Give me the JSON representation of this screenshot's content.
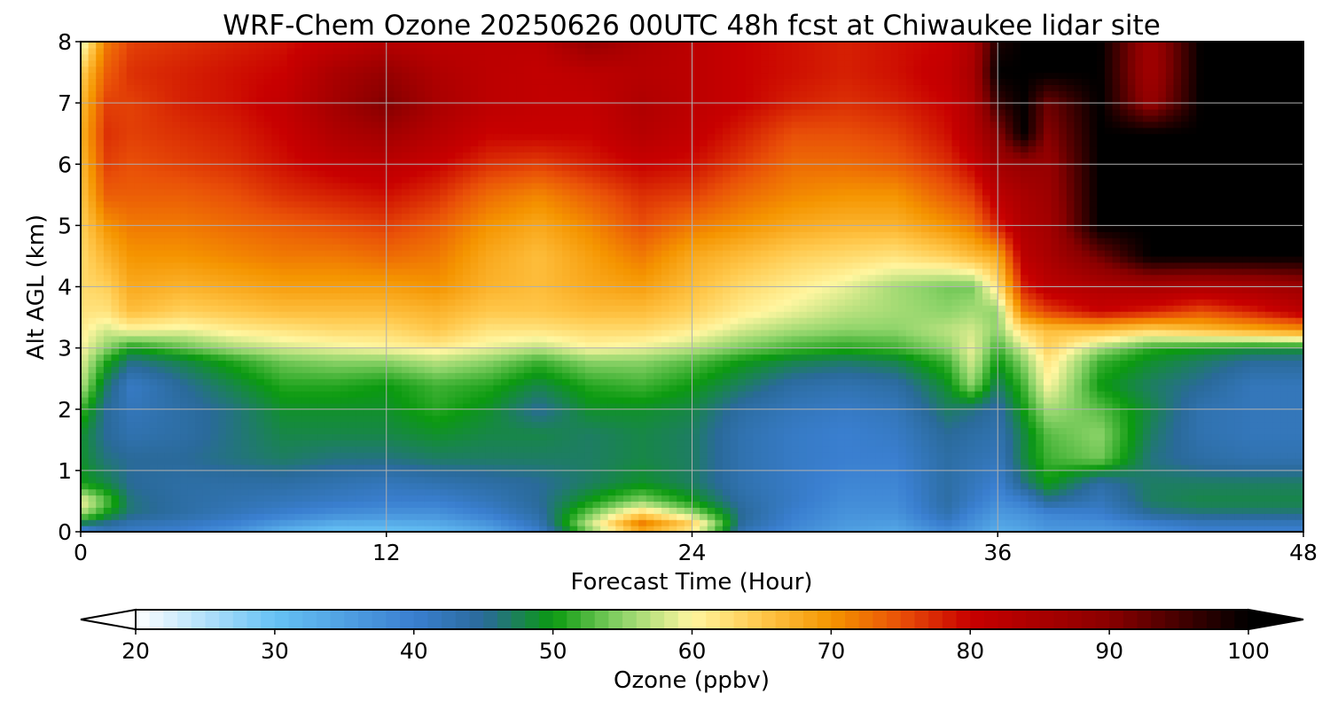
{
  "chart_data": {
    "type": "heatmap",
    "title": "WRF-Chem Ozone  20250626 00UTC 48h fcst at Chiwaukee lidar site",
    "xlabel": "Forecast Time (Hour)",
    "ylabel": "Alt AGL (km)",
    "xlim": [
      0,
      48
    ],
    "ylim": [
      0,
      8
    ],
    "xticks": [
      "0",
      "12",
      "24",
      "36",
      "48"
    ],
    "yticks": [
      "0",
      "1",
      "2",
      "3",
      "4",
      "5",
      "6",
      "7",
      "8"
    ],
    "grid": true,
    "colorbar": {
      "label": "Ozone  (ppbv)",
      "min": 20,
      "max": 100,
      "extend": "both",
      "ticks": [
        "20",
        "30",
        "40",
        "50",
        "60",
        "70",
        "80",
        "90",
        "100"
      ],
      "stops": [
        {
          "value": 20,
          "color": "#ffffff"
        },
        {
          "value": 30,
          "color": "#66c2f5"
        },
        {
          "value": 40,
          "color": "#3a7fd0"
        },
        {
          "value": 45,
          "color": "#2a6a9a"
        },
        {
          "value": 50,
          "color": "#0b9a10"
        },
        {
          "value": 55,
          "color": "#8ed46a"
        },
        {
          "value": 60,
          "color": "#fff6a0"
        },
        {
          "value": 65,
          "color": "#ffc74a"
        },
        {
          "value": 70,
          "color": "#f59500"
        },
        {
          "value": 75,
          "color": "#e95008"
        },
        {
          "value": 80,
          "color": "#c80000"
        },
        {
          "value": 90,
          "color": "#8a0000"
        },
        {
          "value": 100,
          "color": "#000000"
        }
      ]
    },
    "x": [
      0,
      1,
      2,
      4,
      6,
      8,
      10,
      12,
      14,
      16,
      18,
      20,
      22,
      24,
      26,
      28,
      30,
      32,
      34,
      35,
      36,
      37,
      38,
      40,
      42,
      44,
      46,
      48
    ],
    "y": [
      0,
      0.1,
      0.3,
      0.5,
      0.8,
      1.2,
      1.6,
      2.0,
      2.4,
      2.8,
      3.0,
      3.3,
      3.6,
      4.0,
      4.5,
      5.0,
      5.5,
      6.0,
      6.5,
      7.0,
      7.5,
      8.0
    ],
    "z": [
      [
        36,
        42,
        41,
        40,
        37,
        32,
        30,
        30,
        31,
        34,
        40,
        53,
        64,
        58,
        42,
        38,
        35,
        34,
        38,
        36,
        33,
        34,
        36,
        36,
        38,
        40,
        40,
        40
      ],
      [
        45,
        44,
        42,
        41,
        39,
        35,
        32,
        32,
        33,
        36,
        42,
        58,
        74,
        66,
        44,
        39,
        36,
        35,
        40,
        37,
        34,
        35,
        37,
        37,
        39,
        41,
        41,
        41
      ],
      [
        56,
        50,
        46,
        44,
        42,
        40,
        38,
        37,
        37,
        40,
        44,
        54,
        64,
        56,
        45,
        40,
        37,
        37,
        43,
        39,
        36,
        37,
        39,
        40,
        45,
        46,
        46,
        46
      ],
      [
        60,
        53,
        46,
        44,
        43,
        42,
        41,
        40,
        40,
        42,
        45,
        50,
        55,
        50,
        44,
        41,
        38,
        38,
        44,
        41,
        38,
        40,
        45,
        42,
        47,
        48,
        48,
        48
      ],
      [
        50,
        48,
        45,
        44,
        44,
        44,
        43,
        42,
        43,
        44,
        45,
        47,
        49,
        47,
        43,
        41,
        39,
        39,
        44,
        42,
        40,
        46,
        50,
        44,
        47,
        47,
        47,
        47
      ],
      [
        49,
        46,
        45,
        45,
        46,
        47,
        46,
        46,
        47,
        47,
        47,
        47,
        48,
        47,
        43,
        41,
        40,
        40,
        44,
        43,
        42,
        48,
        52,
        54,
        46,
        44,
        43,
        43
      ],
      [
        49,
        45,
        43,
        44,
        46,
        48,
        48,
        48,
        49,
        48,
        48,
        47,
        48,
        47,
        43,
        41,
        40,
        41,
        45,
        44,
        43,
        48,
        53,
        55,
        47,
        43,
        42,
        42
      ],
      [
        52,
        45,
        42,
        44,
        46,
        49,
        49,
        49,
        51,
        49,
        45,
        49,
        49,
        48,
        44,
        42,
        41,
        42,
        47,
        46,
        44,
        50,
        56,
        53,
        48,
        43,
        42,
        42
      ],
      [
        57,
        47,
        41,
        45,
        48,
        51,
        51,
        50,
        52,
        51,
        48,
        51,
        52,
        50,
        47,
        44,
        43,
        44,
        49,
        55,
        47,
        52,
        60,
        50,
        47,
        45,
        42,
        42
      ],
      [
        59,
        51,
        46,
        48,
        51,
        54,
        55,
        55,
        57,
        55,
        52,
        55,
        55,
        53,
        50,
        48,
        47,
        48,
        52,
        58,
        50,
        55,
        62,
        52,
        49,
        47,
        45,
        45
      ],
      [
        60,
        55,
        50,
        53,
        56,
        58,
        59,
        60,
        61,
        59,
        57,
        60,
        59,
        57,
        54,
        52,
        51,
        52,
        55,
        59,
        52,
        58,
        64,
        56,
        51,
        50,
        49,
        49
      ],
      [
        61,
        58,
        60,
        59,
        61,
        62,
        63,
        63,
        65,
        62,
        62,
        63,
        63,
        61,
        58,
        56,
        55,
        55,
        57,
        58,
        55,
        63,
        66,
        66,
        64,
        66,
        68,
        70
      ],
      [
        62,
        62,
        66,
        64,
        65,
        66,
        66,
        66,
        67,
        65,
        65,
        66,
        66,
        64,
        61,
        59,
        57,
        56,
        55,
        56,
        55,
        72,
        76,
        80,
        78,
        75,
        78,
        82
      ],
      [
        63,
        64,
        68,
        67,
        68,
        69,
        69,
        69,
        70,
        67,
        66,
        68,
        69,
        66,
        63,
        61,
        59,
        56,
        54,
        54,
        62,
        78,
        82,
        84,
        85,
        84,
        85,
        87
      ],
      [
        63,
        67,
        70,
        70,
        71,
        72,
        72,
        73,
        72,
        68,
        66,
        69,
        72,
        68,
        66,
        64,
        63,
        62,
        64,
        66,
        68,
        82,
        85,
        92,
        100,
        100,
        100,
        100
      ],
      [
        64,
        70,
        72,
        72,
        73,
        74,
        75,
        76,
        74,
        70,
        68,
        71,
        75,
        72,
        70,
        68,
        67,
        67,
        70,
        72,
        78,
        84,
        86,
        100,
        100,
        100,
        100,
        100
      ],
      [
        65,
        74,
        74,
        74,
        75,
        77,
        78,
        79,
        77,
        73,
        71,
        74,
        77,
        76,
        73,
        71,
        70,
        70,
        74,
        76,
        82,
        85,
        87,
        100,
        100,
        100,
        100,
        100
      ],
      [
        66,
        76,
        75,
        76,
        77,
        79,
        81,
        82,
        80,
        77,
        76,
        78,
        80,
        79,
        76,
        73,
        73,
        74,
        77,
        80,
        86,
        88,
        88,
        100,
        100,
        100,
        100,
        100
      ],
      [
        67,
        77,
        76,
        77,
        78,
        80,
        84,
        86,
        83,
        80,
        80,
        80,
        83,
        81,
        78,
        75,
        75,
        76,
        79,
        83,
        90,
        100,
        90,
        100,
        100,
        100,
        100,
        100
      ],
      [
        66,
        76,
        76,
        78,
        79,
        81,
        86,
        91,
        85,
        82,
        81,
        81,
        84,
        82,
        80,
        78,
        77,
        78,
        80,
        84,
        96,
        100,
        92,
        100,
        88,
        100,
        100,
        100
      ],
      [
        64,
        74,
        77,
        78,
        79,
        80,
        85,
        88,
        84,
        82,
        81,
        82,
        83,
        82,
        80,
        79,
        78,
        79,
        81,
        85,
        100,
        100,
        100,
        100,
        86,
        100,
        100,
        100
      ],
      [
        58,
        72,
        76,
        77,
        78,
        79,
        81,
        83,
        82,
        82,
        82,
        88,
        84,
        82,
        80,
        79,
        78,
        79,
        80,
        84,
        98,
        100,
        100,
        100,
        86,
        100,
        100,
        100
      ]
    ]
  }
}
